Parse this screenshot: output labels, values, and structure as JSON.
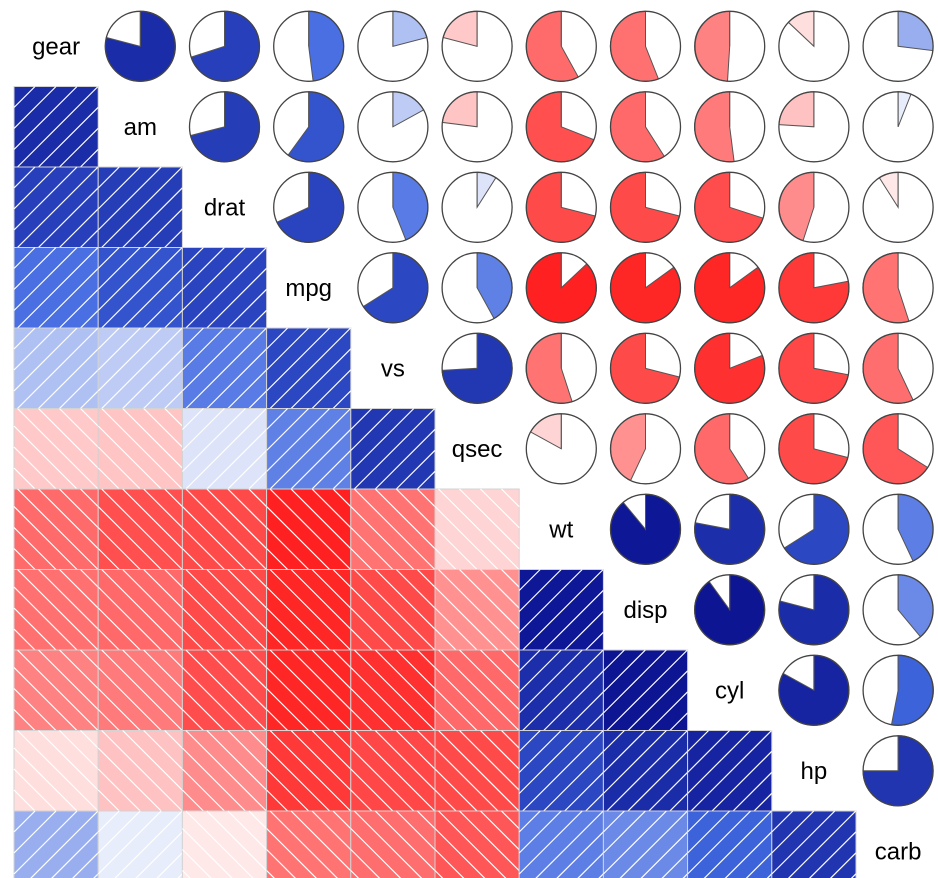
{
  "chart_data": {
    "type": "heatmap",
    "title": "",
    "variables": [
      "gear",
      "am",
      "drat",
      "mpg",
      "vs",
      "qsec",
      "wt",
      "disp",
      "cyl",
      "hp",
      "carb"
    ],
    "matrix": [
      [
        1.0,
        0.79,
        0.7,
        0.48,
        0.21,
        -0.21,
        -0.58,
        -0.56,
        -0.49,
        -0.13,
        0.27
      ],
      [
        0.79,
        1.0,
        0.71,
        0.6,
        0.17,
        -0.23,
        -0.69,
        -0.59,
        -0.52,
        -0.24,
        0.06
      ],
      [
        0.7,
        0.71,
        1.0,
        0.68,
        0.44,
        0.09,
        -0.71,
        -0.71,
        -0.7,
        -0.45,
        -0.09
      ],
      [
        0.48,
        0.6,
        0.68,
        1.0,
        0.66,
        0.42,
        -0.87,
        -0.85,
        -0.85,
        -0.78,
        -0.55
      ],
      [
        0.21,
        0.17,
        0.44,
        0.66,
        1.0,
        0.74,
        -0.55,
        -0.71,
        -0.81,
        -0.72,
        -0.57
      ],
      [
        -0.21,
        -0.23,
        0.09,
        0.42,
        0.74,
        1.0,
        -0.17,
        -0.43,
        -0.59,
        -0.71,
        -0.66
      ],
      [
        -0.58,
        -0.69,
        -0.71,
        -0.87,
        -0.55,
        -0.17,
        1.0,
        0.89,
        0.78,
        0.66,
        0.43
      ],
      [
        -0.56,
        -0.59,
        -0.71,
        -0.85,
        -0.71,
        -0.43,
        0.89,
        1.0,
        0.9,
        0.79,
        0.39
      ],
      [
        -0.49,
        -0.52,
        -0.7,
        -0.85,
        -0.81,
        -0.59,
        0.78,
        0.9,
        1.0,
        0.83,
        0.53
      ],
      [
        -0.13,
        -0.24,
        -0.45,
        -0.78,
        -0.72,
        -0.71,
        0.66,
        0.79,
        0.83,
        1.0,
        0.75
      ],
      [
        0.27,
        0.06,
        -0.09,
        -0.55,
        -0.57,
        -0.66,
        0.43,
        0.39,
        0.53,
        0.75,
        1.0
      ]
    ],
    "lower_panel": "shade",
    "upper_panel": "pie",
    "diagonal": "variable names",
    "color_scale": {
      "negative": "#ff0000",
      "zero": "#ffffff",
      "positive": "#000080",
      "cell_border": "#d3d3d3"
    }
  }
}
